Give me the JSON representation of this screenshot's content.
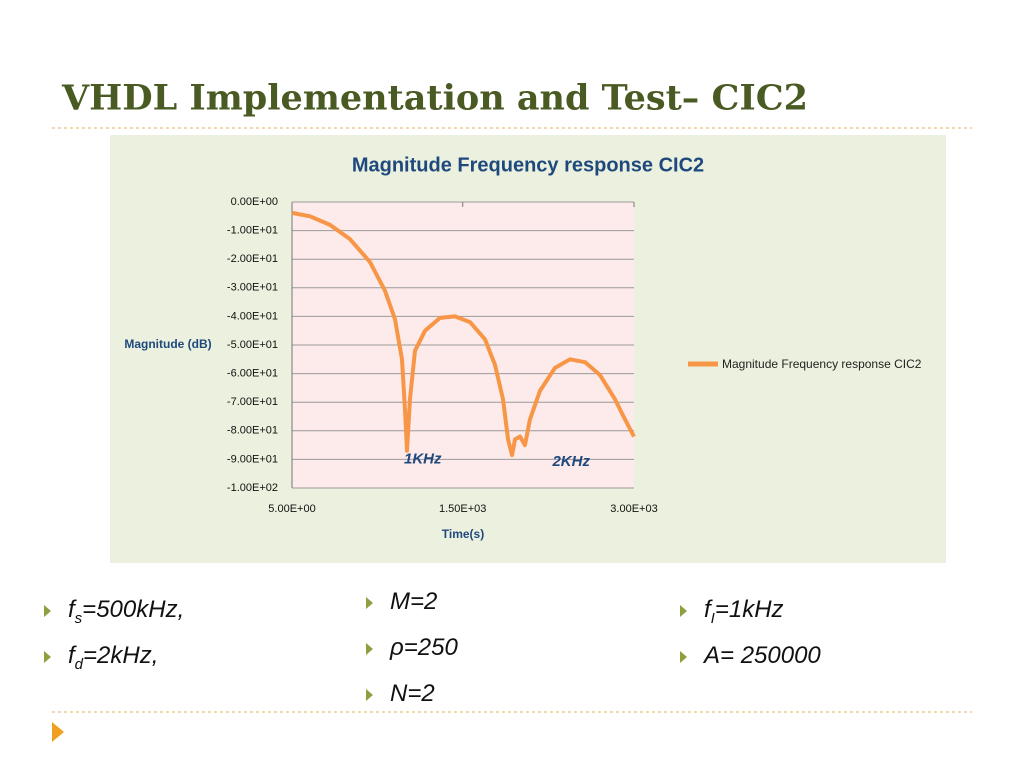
{
  "slide": {
    "title": "VHDL Implementation and Test– CIC2",
    "bullets": [
      [
        {
          "main": "f",
          "sub": "s",
          "rest": "=500kHz,"
        },
        {
          "main": "f",
          "sub": "d",
          "rest": "=2kHz,"
        }
      ],
      [
        {
          "main": "M=2"
        },
        {
          "main": "ρ=250"
        },
        {
          "main": "N=2"
        }
      ],
      [
        {
          "main": "f",
          "sub": "I",
          "rest": "=1kHz"
        },
        {
          "main": "A= 250000"
        }
      ]
    ]
  },
  "chart_data": {
    "type": "line",
    "title": "Magnitude Frequency response CIC2",
    "x_label": "Time(s)",
    "y_label": "Magnitude (dB)",
    "x": [
      5,
      163,
      338,
      513,
      688,
      819,
      907,
      968,
      995,
      1012,
      1038,
      1082,
      1170,
      1301,
      1432,
      1564,
      1695,
      1783,
      1853,
      1897,
      1932,
      1958,
      2002,
      2045,
      2089,
      2177,
      2308,
      2439,
      2571,
      2702,
      2834,
      2921,
      3000
    ],
    "series": [
      {
        "name": "Magnitude Frequency response CIC2",
        "color": "#f79646",
        "values": [
          -3.8,
          -5,
          -8,
          -13,
          -21,
          -31,
          -41,
          -55,
          -73,
          -87,
          -69,
          -52,
          -45,
          -40.5,
          -40,
          -42,
          -48,
          -57,
          -69,
          -83,
          -88.5,
          -83,
          -82,
          -85,
          -76,
          -66,
          -58,
          -55,
          -56,
          -60.5,
          -69,
          -76,
          -82
        ]
      }
    ],
    "xlim": [
      5,
      3000
    ],
    "xticks": [
      {
        "value": 5,
        "label": "5.00E+00"
      },
      {
        "value": 1500,
        "label": "1.50E+03"
      },
      {
        "value": 3000,
        "label": "3.00E+03"
      }
    ],
    "ylim": [
      -100,
      0
    ],
    "yticks": [
      {
        "value": 0,
        "label": "0.00E+00"
      },
      {
        "value": -10,
        "label": "-1.00E+01"
      },
      {
        "value": -20,
        "label": "-2.00E+01"
      },
      {
        "value": -30,
        "label": "-3.00E+01"
      },
      {
        "value": -40,
        "label": "-4.00E+01"
      },
      {
        "value": -50,
        "label": "-5.00E+01"
      },
      {
        "value": -60,
        "label": "-6.00E+01"
      },
      {
        "value": -70,
        "label": "-7.00E+01"
      },
      {
        "value": -80,
        "label": "-8.00E+01"
      },
      {
        "value": -90,
        "label": "-9.00E+01"
      },
      {
        "value": -100,
        "label": "-1.00E+02"
      }
    ],
    "grid": true,
    "legend": "right",
    "annotations": [
      {
        "text": "1KHz",
        "x": 1150,
        "y": -90
      },
      {
        "text": "2KHz",
        "x": 2450,
        "y": -91
      }
    ]
  }
}
